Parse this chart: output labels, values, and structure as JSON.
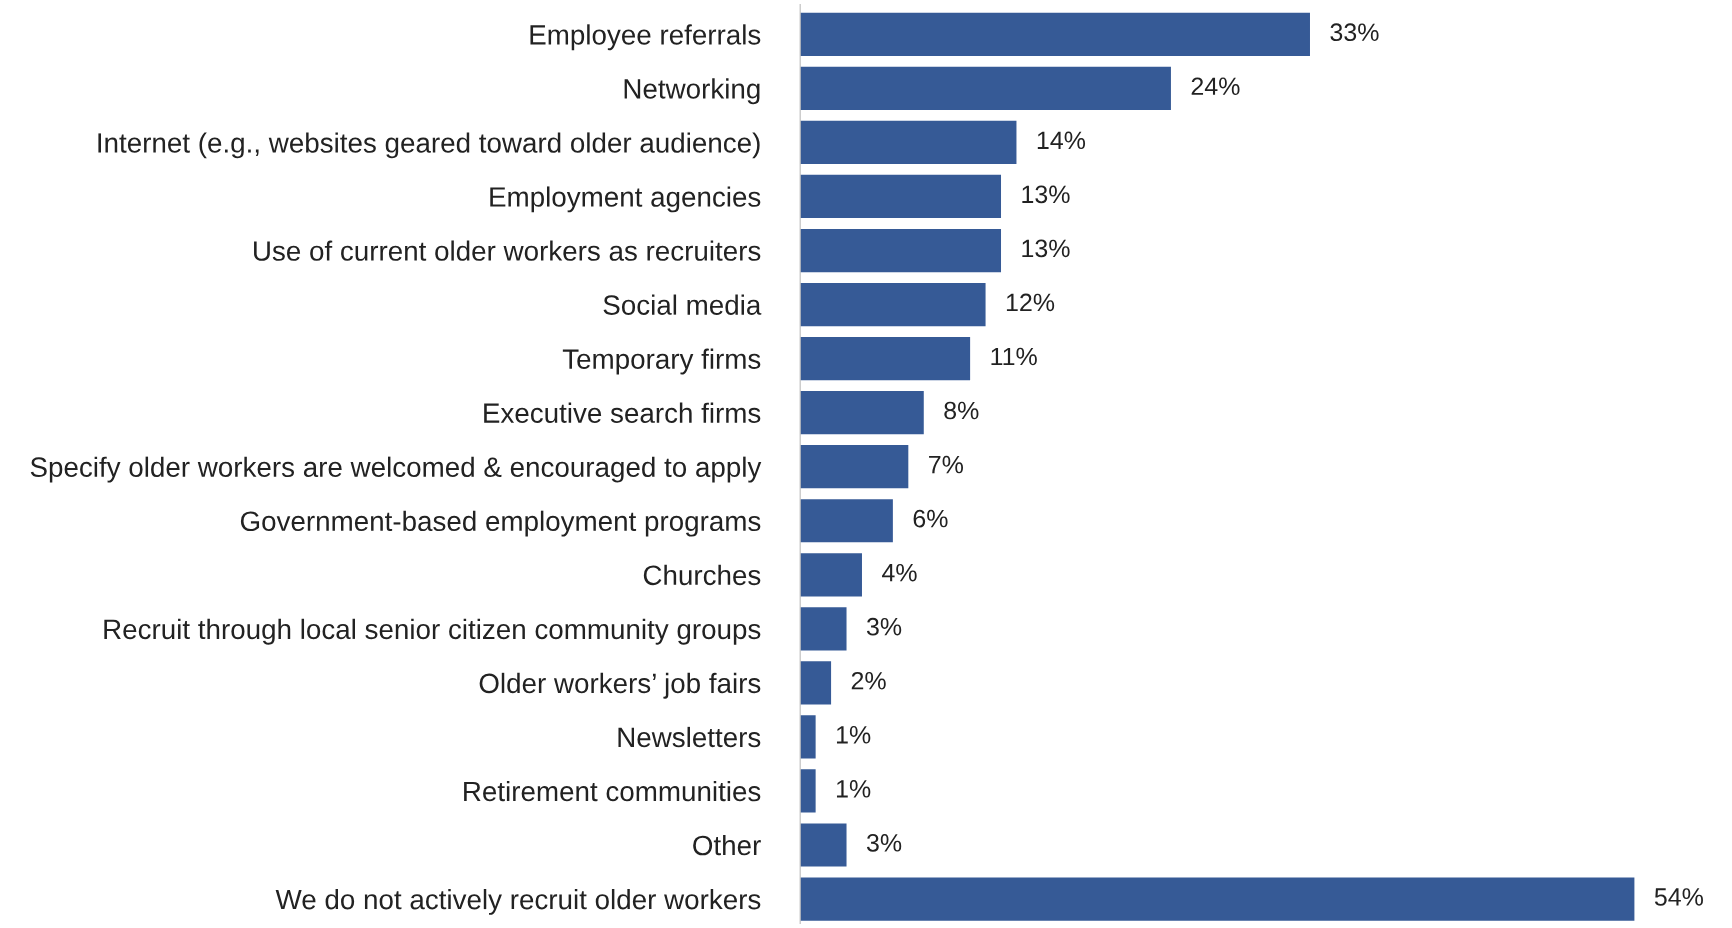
{
  "chart_data": {
    "type": "bar",
    "orientation": "horizontal",
    "categories": [
      "Employee referrals",
      "Networking",
      "Internet (e.g., websites geared toward older audience)",
      "Employment agencies",
      "Use of current older workers as recruiters",
      "Social media",
      "Temporary firms",
      "Executive search firms",
      "Specify older workers are welcomed & encouraged to apply",
      "Government-based employment programs",
      "Churches",
      "Recruit through local senior citizen community groups",
      "Older workers’ job fairs",
      "Newsletters",
      "Retirement communities",
      "Other",
      "We do not actively recruit older workers"
    ],
    "values": [
      33,
      24,
      14,
      13,
      13,
      12,
      11,
      8,
      7,
      6,
      4,
      3,
      2,
      1,
      1,
      3,
      54
    ],
    "value_labels": [
      "33%",
      "24%",
      "14%",
      "13%",
      "13%",
      "12%",
      "11%",
      "8%",
      "7%",
      "6%",
      "4%",
      "3%",
      "2%",
      "1%",
      "1%",
      "3%",
      "54%"
    ],
    "color": "#365a96",
    "grid": false,
    "legend": false
  }
}
